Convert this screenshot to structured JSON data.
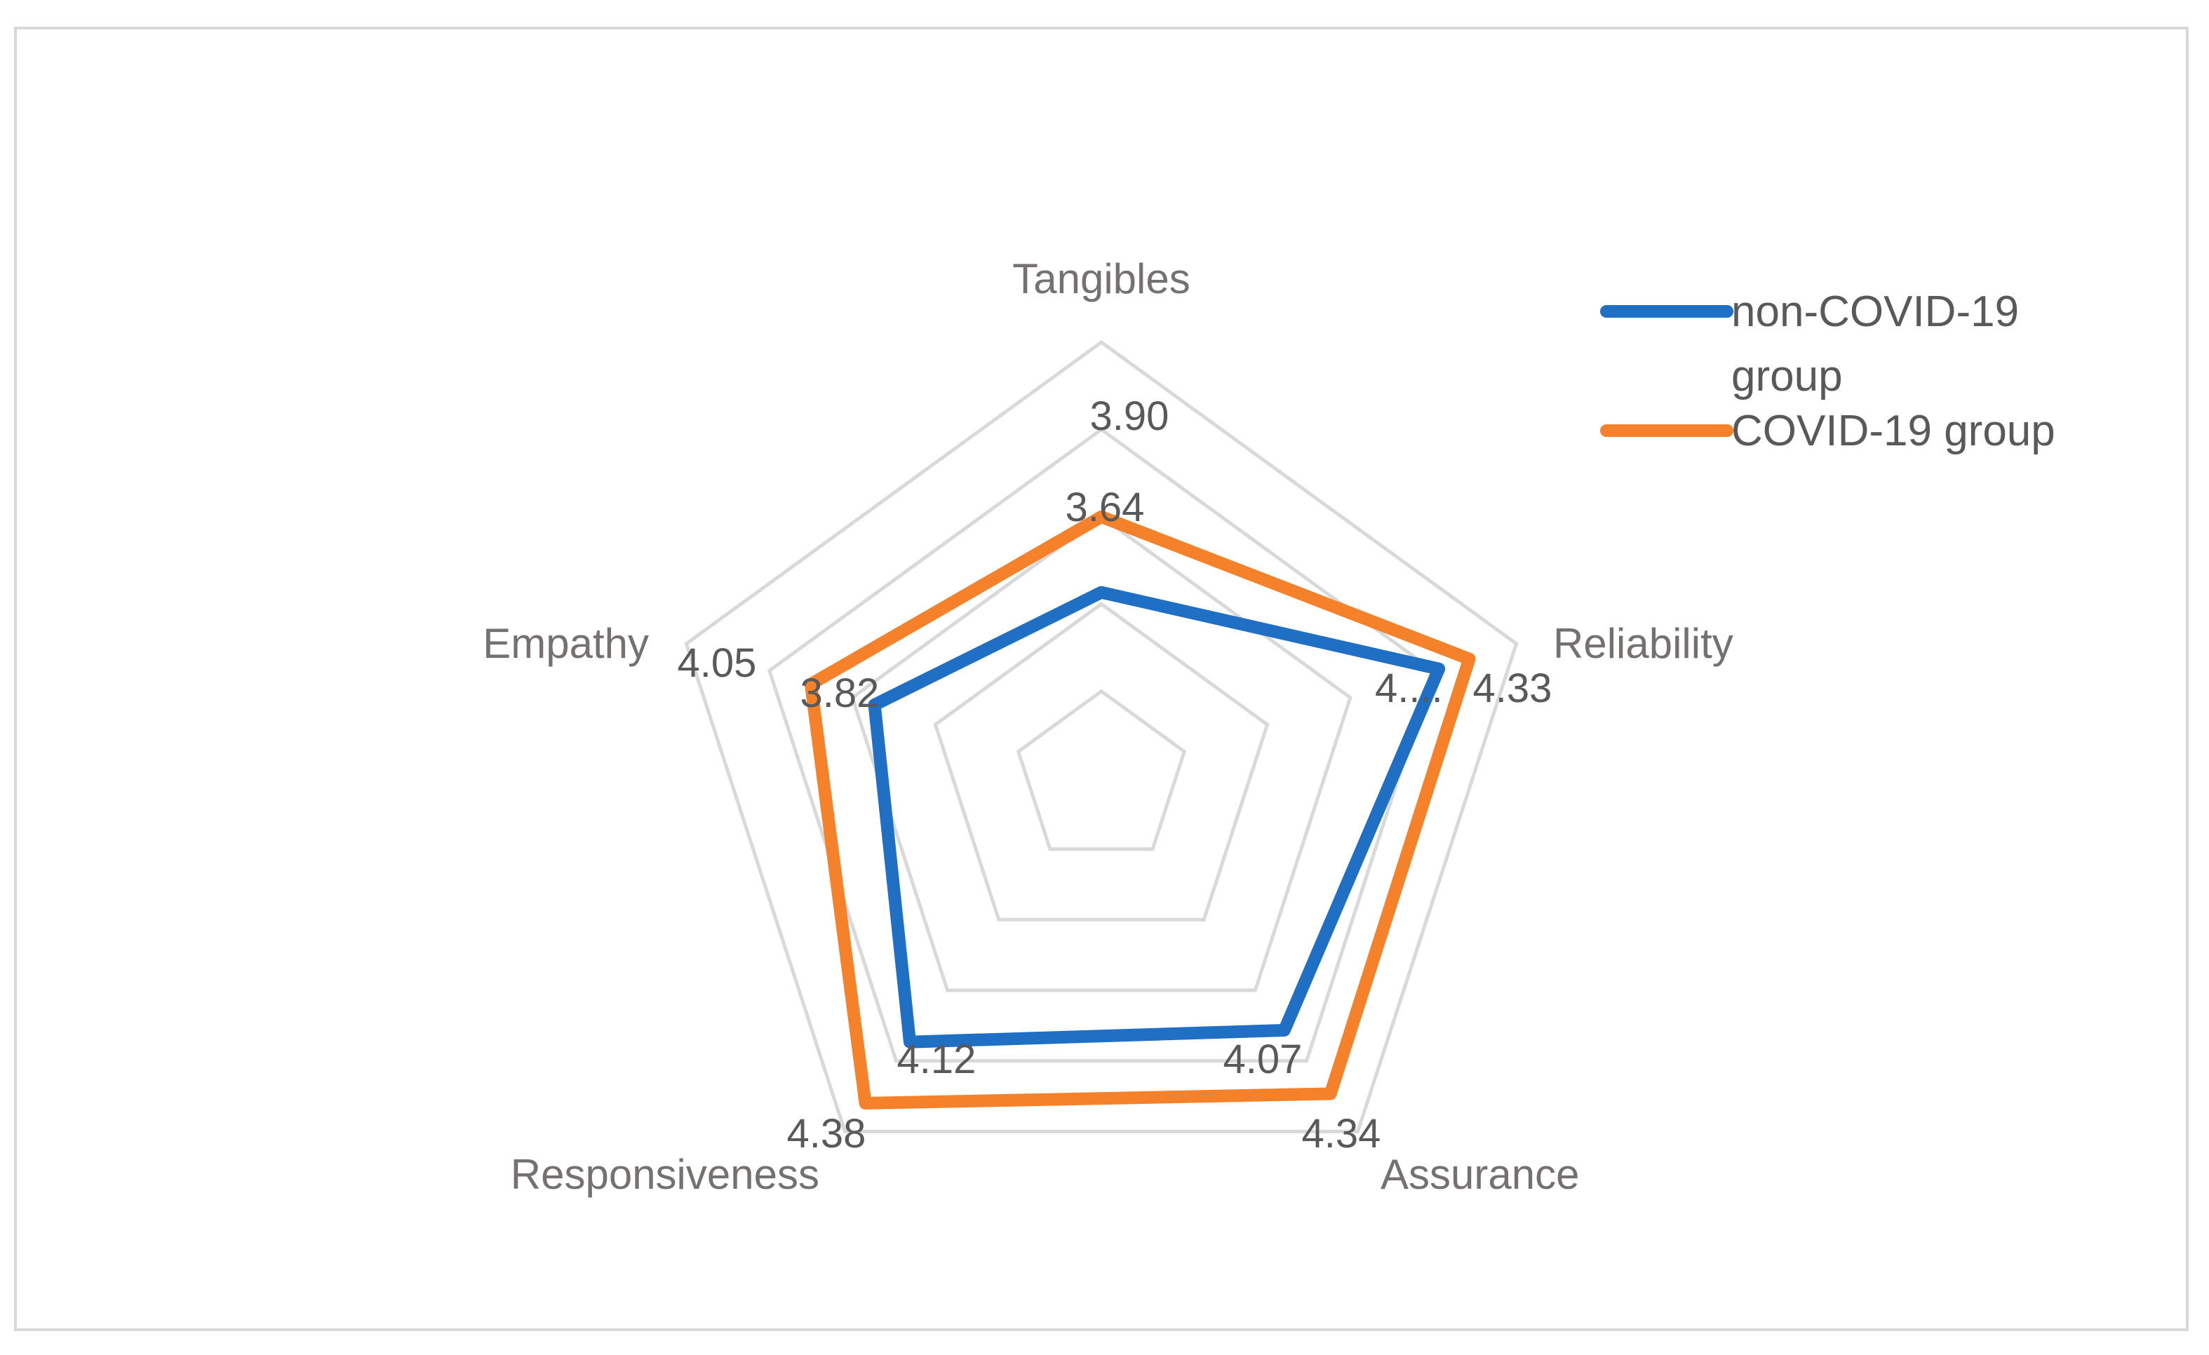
{
  "chart_data": {
    "type": "radar",
    "title": "",
    "categories": [
      "Tangibles",
      "Reliability",
      "Assurance",
      "Responsiveness",
      "Empathy"
    ],
    "rlim": [
      3.0,
      4.5
    ],
    "ticks": [
      3.3,
      3.6,
      3.9,
      4.2,
      4.5
    ],
    "grid": true,
    "legend_position": "top-right",
    "series": [
      {
        "name": "non-COVID-19 group",
        "legend_lines": [
          "non-COVID-19",
          "group"
        ],
        "color": "#1f6fc5",
        "values": [
          3.64,
          4.22,
          4.07,
          4.12,
          3.82
        ],
        "labels": [
          "3.64",
          "4....",
          "4.07",
          "4.12",
          "3.82"
        ]
      },
      {
        "name": "COVID-19 group",
        "legend_lines": [
          "COVID-19 group"
        ],
        "color": "#f5822a",
        "values": [
          3.9,
          4.33,
          4.34,
          4.38,
          4.05
        ],
        "labels": [
          "3.90",
          "4.33",
          "4.34",
          "4.38",
          "4.05"
        ]
      }
    ]
  }
}
